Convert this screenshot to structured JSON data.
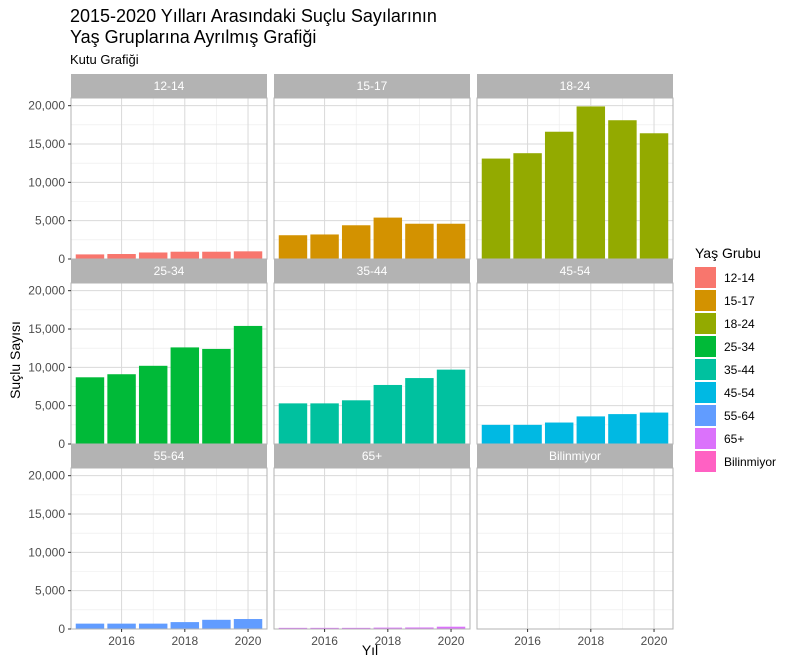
{
  "chart_data": {
    "type": "bar",
    "title_line1": "2015-2020 Yılları Arasındaki Suçlu Sayılarının",
    "title_line2": "Yaş Gruplarına Ayrılmış Grafiği",
    "subtitle": "Kutu Grafiği",
    "xlabel": "Yıl",
    "ylabel": "Suçlu Sayısı",
    "legend_title": "Yaş Grubu",
    "legend_position": "right",
    "grid": true,
    "x": [
      2015,
      2016,
      2017,
      2018,
      2019,
      2020
    ],
    "xlim": [
      2014.4,
      2020.6
    ],
    "x_ticks": [
      2016,
      2018,
      2020
    ],
    "ylim": [
      0,
      21000
    ],
    "y_ticks": [
      0,
      5000,
      10000,
      15000,
      20000
    ],
    "y_tick_labels": [
      "0",
      "5,000",
      "10,000",
      "15,000",
      "20,000"
    ],
    "series": [
      {
        "name": "12-14",
        "color": "#F8766D",
        "values": [
          600,
          650,
          850,
          950,
          950,
          1000
        ]
      },
      {
        "name": "15-17",
        "color": "#D39200",
        "values": [
          3100,
          3200,
          4400,
          5400,
          4600,
          4600
        ]
      },
      {
        "name": "18-24",
        "color": "#93AA00",
        "values": [
          13100,
          13800,
          16600,
          19900,
          18100,
          16400
        ]
      },
      {
        "name": "25-34",
        "color": "#00BA38",
        "values": [
          8700,
          9100,
          10200,
          12600,
          12400,
          15400
        ]
      },
      {
        "name": "35-44",
        "color": "#00C19F",
        "values": [
          5300,
          5300,
          5700,
          7700,
          8600,
          9700
        ]
      },
      {
        "name": "45-54",
        "color": "#00B9E3",
        "values": [
          2500,
          2500,
          2800,
          3600,
          3900,
          4100
        ]
      },
      {
        "name": "55-64",
        "color": "#619CFF",
        "values": [
          700,
          700,
          700,
          900,
          1200,
          1300
        ]
      },
      {
        "name": "65+",
        "color": "#DB72FB",
        "values": [
          150,
          150,
          150,
          180,
          200,
          300
        ]
      },
      {
        "name": "Bilinmiyor",
        "color": "#FF61C3",
        "values": [
          0,
          0,
          0,
          0,
          0,
          0
        ]
      }
    ]
  }
}
